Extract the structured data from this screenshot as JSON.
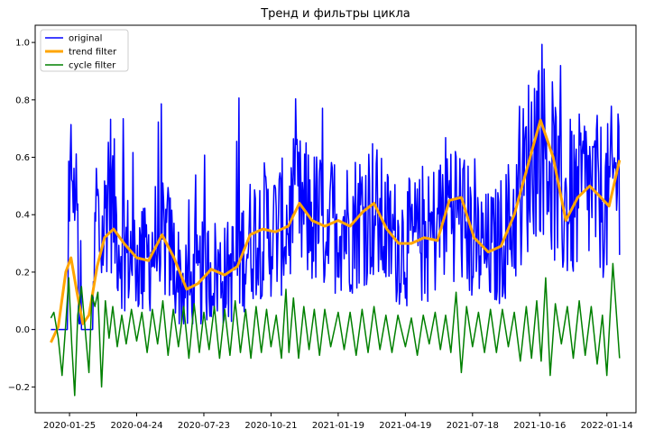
{
  "chart_data": {
    "type": "line",
    "title": "Тренд и фильтры цикла",
    "xlabel": "",
    "ylabel": "",
    "x_range": [
      "2019-12-10",
      "2022-02-22"
    ],
    "ylim": [
      -0.29,
      1.06
    ],
    "grid": false,
    "legend_position": "top-left",
    "x_ticks": [
      "2020-01-25",
      "2020-04-24",
      "2020-07-23",
      "2020-10-21",
      "2021-01-19",
      "2021-04-19",
      "2021-07-18",
      "2021-10-16",
      "2022-01-14"
    ],
    "y_ticks": [
      -0.2,
      0.0,
      0.2,
      0.4,
      0.6,
      0.8,
      1.0
    ],
    "y_tick_labels": [
      "−0.2",
      "0.0",
      "0.2",
      "0.4",
      "0.6",
      "0.8",
      "1.0"
    ],
    "series": [
      {
        "name": "original",
        "color": "#0000ff",
        "style": "noisy daily values",
        "x_start": "2019-12-31",
        "x_end": "2022-01-31",
        "values": [
          [
            "2019-12-31",
            0.0
          ],
          [
            "2020-01-22",
            0.0
          ],
          [
            "2020-01-26",
            0.4
          ],
          [
            "2020-01-29",
            0.75
          ],
          [
            "2020-02-01",
            0.24
          ],
          [
            "2020-02-03",
            0.71
          ],
          [
            "2020-02-06",
            0.06
          ],
          [
            "2020-02-10",
            0.0
          ],
          [
            "2020-02-20",
            0.0
          ],
          [
            "2020-02-25",
            0.0
          ],
          [
            "2020-03-01",
            0.45
          ],
          [
            "2020-03-06",
            0.3
          ],
          [
            "2020-03-11",
            0.33
          ],
          [
            "2020-03-17",
            0.55
          ],
          [
            "2020-03-24",
            0.42
          ],
          [
            "2020-04-01",
            0.3
          ],
          [
            "2020-04-12",
            0.27
          ],
          [
            "2020-04-24",
            0.25
          ],
          [
            "2020-05-06",
            0.23
          ],
          [
            "2020-05-18",
            0.3
          ],
          [
            "2020-05-28",
            0.33
          ],
          [
            "2020-06-08",
            0.28
          ],
          [
            "2020-06-20",
            0.18
          ],
          [
            "2020-07-01",
            0.12
          ],
          [
            "2020-07-12",
            0.15
          ],
          [
            "2020-07-23",
            0.2
          ],
          [
            "2020-08-06",
            0.21
          ],
          [
            "2020-08-20",
            0.19
          ],
          [
            "2020-09-03",
            0.22
          ],
          [
            "2020-09-16",
            0.28
          ],
          [
            "2020-09-30",
            0.34
          ],
          [
            "2020-10-13",
            0.35
          ],
          [
            "2020-10-26",
            0.34
          ],
          [
            "2020-11-09",
            0.36
          ],
          [
            "2020-11-23",
            0.42
          ],
          [
            "2020-12-07",
            0.4
          ],
          [
            "2020-12-21",
            0.38
          ],
          [
            "2021-01-04",
            0.37
          ],
          [
            "2021-01-19",
            0.38
          ],
          [
            "2021-02-03",
            0.36
          ],
          [
            "2021-02-18",
            0.4
          ],
          [
            "2021-03-05",
            0.43
          ],
          [
            "2021-03-20",
            0.35
          ],
          [
            "2021-04-04",
            0.31
          ],
          [
            "2021-04-19",
            0.3
          ],
          [
            "2021-05-04",
            0.31
          ],
          [
            "2021-05-19",
            0.31
          ],
          [
            "2021-06-03",
            0.38
          ],
          [
            "2021-06-18",
            0.46
          ],
          [
            "2021-07-03",
            0.4
          ],
          [
            "2021-07-18",
            0.31
          ],
          [
            "2021-08-02",
            0.27
          ],
          [
            "2021-08-17",
            0.28
          ],
          [
            "2021-09-01",
            0.34
          ],
          [
            "2021-09-16",
            0.42
          ],
          [
            "2021-10-01",
            0.58
          ],
          [
            "2021-10-16",
            0.7
          ],
          [
            "2021-10-31",
            0.58
          ],
          [
            "2021-11-15",
            0.42
          ],
          [
            "2021-11-30",
            0.43
          ],
          [
            "2021-12-15",
            0.5
          ],
          [
            "2021-12-30",
            0.47
          ],
          [
            "2022-01-14",
            0.44
          ],
          [
            "2022-01-31",
            0.58
          ]
        ]
      },
      {
        "name": "trend filter",
        "color": "#ffa500",
        "values": [
          [
            "2019-12-31",
            -0.045
          ],
          [
            "2020-01-10",
            0.01
          ],
          [
            "2020-01-20",
            0.2
          ],
          [
            "2020-01-27",
            0.25
          ],
          [
            "2020-02-04",
            0.13
          ],
          [
            "2020-02-12",
            0.02
          ],
          [
            "2020-02-20",
            0.05
          ],
          [
            "2020-03-02",
            0.22
          ],
          [
            "2020-03-12",
            0.32
          ],
          [
            "2020-03-24",
            0.35
          ],
          [
            "2020-04-07",
            0.3
          ],
          [
            "2020-04-24",
            0.25
          ],
          [
            "2020-05-10",
            0.24
          ],
          [
            "2020-05-28",
            0.33
          ],
          [
            "2020-06-13",
            0.25
          ],
          [
            "2020-06-30",
            0.14
          ],
          [
            "2020-07-15",
            0.16
          ],
          [
            "2020-08-02",
            0.21
          ],
          [
            "2020-08-20",
            0.19
          ],
          [
            "2020-09-06",
            0.22
          ],
          [
            "2020-09-23",
            0.33
          ],
          [
            "2020-10-10",
            0.35
          ],
          [
            "2020-10-27",
            0.34
          ],
          [
            "2020-11-13",
            0.36
          ],
          [
            "2020-11-28",
            0.44
          ],
          [
            "2020-12-15",
            0.38
          ],
          [
            "2021-01-01",
            0.36
          ],
          [
            "2021-01-19",
            0.38
          ],
          [
            "2021-02-04",
            0.36
          ],
          [
            "2021-02-21",
            0.41
          ],
          [
            "2021-03-08",
            0.44
          ],
          [
            "2021-03-25",
            0.35
          ],
          [
            "2021-04-10",
            0.3
          ],
          [
            "2021-04-27",
            0.3
          ],
          [
            "2021-05-14",
            0.32
          ],
          [
            "2021-06-01",
            0.31
          ],
          [
            "2021-06-17",
            0.45
          ],
          [
            "2021-07-03",
            0.46
          ],
          [
            "2021-07-20",
            0.32
          ],
          [
            "2021-08-08",
            0.27
          ],
          [
            "2021-08-25",
            0.29
          ],
          [
            "2021-09-12",
            0.4
          ],
          [
            "2021-09-30",
            0.57
          ],
          [
            "2021-10-17",
            0.73
          ],
          [
            "2021-11-03",
            0.6
          ],
          [
            "2021-11-20",
            0.38
          ],
          [
            "2021-12-06",
            0.46
          ],
          [
            "2021-12-22",
            0.5
          ],
          [
            "2022-01-06",
            0.46
          ],
          [
            "2022-01-17",
            0.43
          ],
          [
            "2022-01-31",
            0.59
          ]
        ]
      },
      {
        "name": "cycle filter",
        "color": "#008000",
        "values": [
          [
            "2019-12-31",
            0.04
          ],
          [
            "2020-01-04",
            0.06
          ],
          [
            "2020-01-10",
            -0.03
          ],
          [
            "2020-01-15",
            -0.16
          ],
          [
            "2020-01-20",
            0.02
          ],
          [
            "2020-01-24",
            0.18
          ],
          [
            "2020-01-28",
            -0.05
          ],
          [
            "2020-02-01",
            -0.23
          ],
          [
            "2020-02-05",
            0.05
          ],
          [
            "2020-02-10",
            0.15
          ],
          [
            "2020-02-15",
            0.0
          ],
          [
            "2020-02-20",
            -0.15
          ],
          [
            "2020-02-24",
            0.12
          ],
          [
            "2020-02-28",
            0.08
          ],
          [
            "2020-03-03",
            0.13
          ],
          [
            "2020-03-08",
            -0.2
          ],
          [
            "2020-03-13",
            0.1
          ],
          [
            "2020-03-18",
            -0.03
          ],
          [
            "2020-03-23",
            0.08
          ],
          [
            "2020-03-29",
            -0.06
          ],
          [
            "2020-04-04",
            0.05
          ],
          [
            "2020-04-10",
            -0.05
          ],
          [
            "2020-04-17",
            0.07
          ],
          [
            "2020-04-24",
            -0.04
          ],
          [
            "2020-05-01",
            0.06
          ],
          [
            "2020-05-08",
            -0.08
          ],
          [
            "2020-05-15",
            0.07
          ],
          [
            "2020-05-22",
            -0.05
          ],
          [
            "2020-05-29",
            0.1
          ],
          [
            "2020-06-05",
            -0.09
          ],
          [
            "2020-06-12",
            0.07
          ],
          [
            "2020-06-19",
            -0.06
          ],
          [
            "2020-06-26",
            0.08
          ],
          [
            "2020-07-03",
            -0.1
          ],
          [
            "2020-07-10",
            0.09
          ],
          [
            "2020-07-17",
            -0.08
          ],
          [
            "2020-07-23",
            0.06
          ],
          [
            "2020-07-30",
            -0.07
          ],
          [
            "2020-08-06",
            0.08
          ],
          [
            "2020-08-13",
            -0.1
          ],
          [
            "2020-08-20",
            0.07
          ],
          [
            "2020-08-27",
            -0.09
          ],
          [
            "2020-09-03",
            0.1
          ],
          [
            "2020-09-10",
            -0.08
          ],
          [
            "2020-09-17",
            0.07
          ],
          [
            "2020-09-24",
            -0.1
          ],
          [
            "2020-10-01",
            0.08
          ],
          [
            "2020-10-08",
            -0.08
          ],
          [
            "2020-10-15",
            0.07
          ],
          [
            "2020-10-21",
            -0.06
          ],
          [
            "2020-10-28",
            0.05
          ],
          [
            "2020-11-04",
            -0.1
          ],
          [
            "2020-11-10",
            0.14
          ],
          [
            "2020-11-14",
            -0.08
          ],
          [
            "2020-11-20",
            0.11
          ],
          [
            "2020-11-27",
            -0.1
          ],
          [
            "2020-12-04",
            0.08
          ],
          [
            "2020-12-11",
            -0.07
          ],
          [
            "2020-12-18",
            0.07
          ],
          [
            "2020-12-25",
            -0.09
          ],
          [
            "2021-01-01",
            0.07
          ],
          [
            "2021-01-09",
            -0.06
          ],
          [
            "2021-01-19",
            0.06
          ],
          [
            "2021-01-27",
            -0.07
          ],
          [
            "2021-02-04",
            0.06
          ],
          [
            "2021-02-12",
            -0.09
          ],
          [
            "2021-02-20",
            0.07
          ],
          [
            "2021-02-28",
            -0.08
          ],
          [
            "2021-03-08",
            0.08
          ],
          [
            "2021-03-16",
            -0.07
          ],
          [
            "2021-03-24",
            0.05
          ],
          [
            "2021-04-01",
            -0.08
          ],
          [
            "2021-04-09",
            0.05
          ],
          [
            "2021-04-19",
            -0.06
          ],
          [
            "2021-04-27",
            0.04
          ],
          [
            "2021-05-05",
            -0.09
          ],
          [
            "2021-05-13",
            0.05
          ],
          [
            "2021-05-21",
            -0.05
          ],
          [
            "2021-05-29",
            0.06
          ],
          [
            "2021-06-05",
            -0.07
          ],
          [
            "2021-06-12",
            0.05
          ],
          [
            "2021-06-19",
            -0.08
          ],
          [
            "2021-06-26",
            0.13
          ],
          [
            "2021-07-03",
            -0.15
          ],
          [
            "2021-07-10",
            0.08
          ],
          [
            "2021-07-18",
            -0.06
          ],
          [
            "2021-07-26",
            0.06
          ],
          [
            "2021-08-03",
            -0.08
          ],
          [
            "2021-08-11",
            0.07
          ],
          [
            "2021-08-19",
            -0.08
          ],
          [
            "2021-08-27",
            0.07
          ],
          [
            "2021-09-04",
            -0.06
          ],
          [
            "2021-09-12",
            0.06
          ],
          [
            "2021-09-20",
            -0.11
          ],
          [
            "2021-09-28",
            0.08
          ],
          [
            "2021-10-05",
            -0.1
          ],
          [
            "2021-10-12",
            0.1
          ],
          [
            "2021-10-18",
            -0.11
          ],
          [
            "2021-10-24",
            0.18
          ],
          [
            "2021-10-30",
            -0.16
          ],
          [
            "2021-11-06",
            0.09
          ],
          [
            "2021-11-14",
            -0.05
          ],
          [
            "2021-11-22",
            0.08
          ],
          [
            "2021-11-30",
            -0.1
          ],
          [
            "2021-12-08",
            0.1
          ],
          [
            "2021-12-16",
            -0.09
          ],
          [
            "2021-12-24",
            0.08
          ],
          [
            "2022-01-01",
            -0.12
          ],
          [
            "2022-01-08",
            0.05
          ],
          [
            "2022-01-14",
            -0.16
          ],
          [
            "2022-01-22",
            0.23
          ],
          [
            "2022-01-31",
            -0.1
          ]
        ]
      }
    ]
  }
}
